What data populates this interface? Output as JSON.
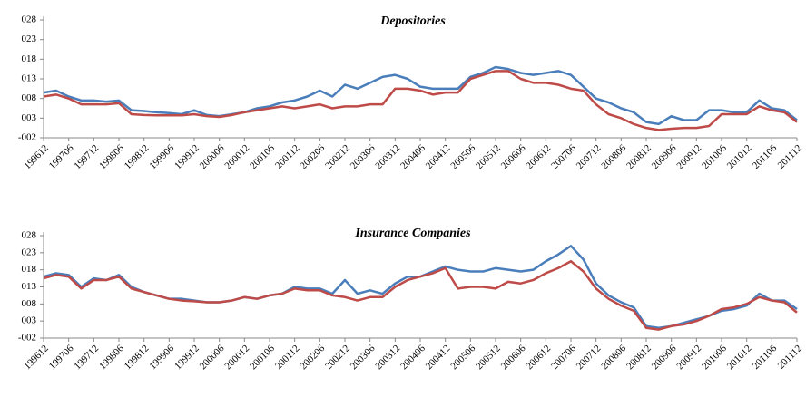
{
  "chart_data": [
    {
      "type": "line",
      "title": "Depositories",
      "categories": [
        "199612",
        null,
        "199706",
        null,
        "199712",
        null,
        "199806",
        null,
        "199812",
        null,
        "199906",
        null,
        "199912",
        null,
        "200006",
        null,
        "200012",
        null,
        "200106",
        null,
        "200112",
        null,
        "200206",
        null,
        "200212",
        null,
        "200306",
        null,
        "200312",
        null,
        "200406",
        null,
        "200412",
        null,
        "200506",
        null,
        "200512",
        null,
        "200606",
        null,
        "200612",
        null,
        "200706",
        null,
        "200712",
        null,
        "200806",
        null,
        "200812",
        null,
        "200906",
        null,
        "200912",
        null,
        "201006",
        null,
        "201012",
        null,
        "201106",
        null,
        "201112"
      ],
      "series": [
        {
          "color": "#4a7ebb",
          "values": [
            0.0095,
            0.01,
            0.0085,
            0.0075,
            0.0075,
            0.0072,
            0.0075,
            0.005,
            0.0048,
            0.0045,
            0.0043,
            0.004,
            0.005,
            0.0038,
            0.0035,
            0.004,
            0.0045,
            0.0055,
            0.006,
            0.007,
            0.0075,
            0.0085,
            0.01,
            0.0085,
            0.0115,
            0.0105,
            0.012,
            0.0135,
            0.014,
            0.013,
            0.011,
            0.0105,
            0.0105,
            0.0105,
            0.0135,
            0.0145,
            0.016,
            0.0155,
            0.0145,
            0.014,
            0.0145,
            0.015,
            0.014,
            0.011,
            0.008,
            0.007,
            0.0055,
            0.0045,
            0.002,
            0.0015,
            0.0035,
            0.0025,
            0.0025,
            0.005,
            0.005,
            0.0045,
            0.0045,
            0.0075,
            0.0055,
            0.005,
            0.0025
          ]
        },
        {
          "color": "#be4b48",
          "values": [
            0.0085,
            0.009,
            0.008,
            0.0065,
            0.0065,
            0.0065,
            0.0068,
            0.004,
            0.0038,
            0.0037,
            0.0037,
            0.0037,
            0.004,
            0.0035,
            0.0033,
            0.0038,
            0.0045,
            0.005,
            0.0055,
            0.006,
            0.0055,
            0.006,
            0.0065,
            0.0055,
            0.006,
            0.006,
            0.0065,
            0.0065,
            0.0105,
            0.0105,
            0.01,
            0.009,
            0.0095,
            0.0095,
            0.013,
            0.014,
            0.015,
            0.015,
            0.013,
            0.012,
            0.012,
            0.0115,
            0.0105,
            0.01,
            0.0065,
            0.004,
            0.003,
            0.0015,
            0.0005,
            0.0,
            0.0003,
            0.0005,
            0.0005,
            0.001,
            0.004,
            0.004,
            0.004,
            0.006,
            0.005,
            0.0045,
            0.002
          ]
        }
      ],
      "ylim": [
        -0.002,
        0.028
      ],
      "yticks": [
        {
          "value": -0.002,
          "label": "-002"
        },
        {
          "value": 0.003,
          "label": "003"
        },
        {
          "value": 0.008,
          "label": "008"
        },
        {
          "value": 0.013,
          "label": "013"
        },
        {
          "value": 0.018,
          "label": "018"
        },
        {
          "value": 0.023,
          "label": "023"
        },
        {
          "value": 0.028,
          "label": "028"
        }
      ],
      "grid": false
    },
    {
      "type": "line",
      "title": "Insurance Companies",
      "categories": [
        "199612",
        null,
        "199706",
        null,
        "199712",
        null,
        "199806",
        null,
        "199812",
        null,
        "199906",
        null,
        "199912",
        null,
        "200006",
        null,
        "200012",
        null,
        "200106",
        null,
        "200112",
        null,
        "200206",
        null,
        "200212",
        null,
        "200306",
        null,
        "200312",
        null,
        "200406",
        null,
        "200412",
        null,
        "200506",
        null,
        "200512",
        null,
        "200606",
        null,
        "200612",
        null,
        "200706",
        null,
        "200712",
        null,
        "200806",
        null,
        "200812",
        null,
        "200906",
        null,
        "200912",
        null,
        "201006",
        null,
        "201012",
        null,
        "201106",
        null,
        "201112"
      ],
      "series": [
        {
          "color": "#4a7ebb",
          "values": [
            0.016,
            0.017,
            0.0165,
            0.013,
            0.0155,
            0.015,
            0.0165,
            0.013,
            0.0115,
            0.0105,
            0.0095,
            0.0095,
            0.009,
            0.0085,
            0.0085,
            0.009,
            0.01,
            0.0095,
            0.0105,
            0.011,
            0.013,
            0.0125,
            0.0125,
            0.011,
            0.015,
            0.011,
            0.012,
            0.011,
            0.014,
            0.016,
            0.016,
            0.0175,
            0.019,
            0.018,
            0.0175,
            0.0175,
            0.0185,
            0.018,
            0.0175,
            0.018,
            0.0205,
            0.0225,
            0.025,
            0.021,
            0.014,
            0.0105,
            0.0085,
            0.007,
            0.0015,
            0.001,
            0.0015,
            0.0025,
            0.0035,
            0.0045,
            0.006,
            0.0065,
            0.0075,
            0.011,
            0.009,
            0.009,
            0.0065
          ]
        },
        {
          "color": "#be4b48",
          "values": [
            0.0155,
            0.0165,
            0.016,
            0.0125,
            0.015,
            0.015,
            0.016,
            0.0125,
            0.0115,
            0.0105,
            0.0095,
            0.009,
            0.0088,
            0.0085,
            0.0085,
            0.009,
            0.01,
            0.0095,
            0.0105,
            0.011,
            0.0125,
            0.012,
            0.012,
            0.0105,
            0.01,
            0.009,
            0.01,
            0.01,
            0.013,
            0.015,
            0.016,
            0.017,
            0.0185,
            0.0125,
            0.013,
            0.013,
            0.0125,
            0.0145,
            0.014,
            0.015,
            0.017,
            0.0185,
            0.0205,
            0.0175,
            0.0125,
            0.0095,
            0.0075,
            0.006,
            0.001,
            0.0005,
            0.0015,
            0.002,
            0.003,
            0.0045,
            0.0065,
            0.007,
            0.008,
            0.01,
            0.009,
            0.0085,
            0.0055
          ]
        }
      ],
      "ylim": [
        -0.002,
        0.028
      ],
      "yticks": [
        {
          "value": -0.002,
          "label": "-002"
        },
        {
          "value": 0.003,
          "label": "003"
        },
        {
          "value": 0.008,
          "label": "008"
        },
        {
          "value": 0.013,
          "label": "013"
        },
        {
          "value": 0.018,
          "label": "018"
        },
        {
          "value": 0.023,
          "label": "023"
        },
        {
          "value": 0.028,
          "label": "028"
        }
      ],
      "grid": false
    }
  ]
}
